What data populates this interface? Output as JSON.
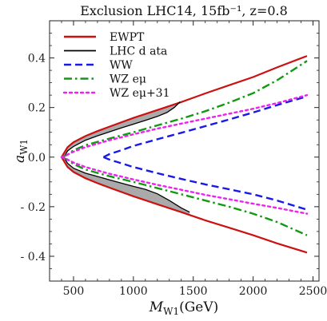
{
  "chart_data": {
    "type": "line",
    "title": "Exclusion LHC14, 15fb⁻¹, z=0.8",
    "xlabel": "M_W1 (GeV)",
    "xlabel_main": "M",
    "xlabel_sub": "W1",
    "xlabel_unit": "(GeV)",
    "ylabel": "a_W1",
    "ylabel_main": "a",
    "ylabel_sub": "W1",
    "xlim": [
      300,
      2550
    ],
    "ylim": [
      -0.5,
      0.55
    ],
    "xticks": [
      500,
      1000,
      1500,
      2000,
      2500
    ],
    "yticks": [
      0.4,
      0.2,
      0.0,
      -0.2,
      -0.4
    ],
    "xtick_labels": [
      "500",
      "1000",
      "1500",
      "2000",
      "2500"
    ],
    "ytick_labels": [
      "0.4",
      "0.2",
      "0.0",
      "- 0.2",
      "- 0.4"
    ],
    "grid": false,
    "legend_position": "top-left",
    "series": [
      {
        "name": "EWPT",
        "color": "#cc1111",
        "dash": "solid",
        "upper": [
          [
            400,
            0.0
          ],
          [
            450,
            0.04
          ],
          [
            500,
            0.06
          ],
          [
            600,
            0.085
          ],
          [
            700,
            0.105
          ],
          [
            800,
            0.123
          ],
          [
            1000,
            0.158
          ],
          [
            1200,
            0.19
          ],
          [
            1400,
            0.222
          ],
          [
            1600,
            0.257
          ],
          [
            1800,
            0.29
          ],
          [
            2000,
            0.323
          ],
          [
            2200,
            0.362
          ],
          [
            2450,
            0.408
          ]
        ],
        "lower": [
          [
            400,
            0.0
          ],
          [
            450,
            -0.04
          ],
          [
            500,
            -0.06
          ],
          [
            600,
            -0.085
          ],
          [
            700,
            -0.105
          ],
          [
            800,
            -0.123
          ],
          [
            1000,
            -0.158
          ],
          [
            1200,
            -0.19
          ],
          [
            1400,
            -0.222
          ],
          [
            1600,
            -0.255
          ],
          [
            1800,
            -0.285
          ],
          [
            2000,
            -0.315
          ],
          [
            2200,
            -0.348
          ],
          [
            2450,
            -0.385
          ]
        ]
      },
      {
        "name": "LHC data",
        "color": "#000000",
        "dash": "solid",
        "upper": [
          [
            420,
            0.0
          ],
          [
            450,
            0.025
          ],
          [
            500,
            0.043
          ],
          [
            600,
            0.068
          ],
          [
            700,
            0.086
          ],
          [
            800,
            0.102
          ],
          [
            900,
            0.118
          ],
          [
            1000,
            0.133
          ],
          [
            1100,
            0.148
          ],
          [
            1200,
            0.164
          ],
          [
            1280,
            0.18
          ],
          [
            1340,
            0.2
          ],
          [
            1390,
            0.223
          ]
        ],
        "lower": [
          [
            420,
            0.0
          ],
          [
            450,
            -0.025
          ],
          [
            500,
            -0.045
          ],
          [
            600,
            -0.065
          ],
          [
            700,
            -0.078
          ],
          [
            800,
            -0.092
          ],
          [
            900,
            -0.105
          ],
          [
            1000,
            -0.118
          ],
          [
            1100,
            -0.13
          ],
          [
            1200,
            -0.148
          ],
          [
            1300,
            -0.175
          ],
          [
            1400,
            -0.205
          ],
          [
            1470,
            -0.222
          ]
        ]
      },
      {
        "name": "WW",
        "color": "#1a1ae6",
        "dash": "dashed",
        "upper": [
          [
            750,
            0.0
          ],
          [
            800,
            0.012
          ],
          [
            900,
            0.028
          ],
          [
            1000,
            0.045
          ],
          [
            1200,
            0.072
          ],
          [
            1400,
            0.098
          ],
          [
            1600,
            0.125
          ],
          [
            1800,
            0.152
          ],
          [
            2000,
            0.18
          ],
          [
            2200,
            0.21
          ],
          [
            2450,
            0.245
          ]
        ],
        "lower": [
          [
            750,
            0.0
          ],
          [
            800,
            -0.01
          ],
          [
            900,
            -0.025
          ],
          [
            1000,
            -0.04
          ],
          [
            1200,
            -0.065
          ],
          [
            1400,
            -0.088
          ],
          [
            1600,
            -0.11
          ],
          [
            1800,
            -0.13
          ],
          [
            2000,
            -0.15
          ],
          [
            2200,
            -0.175
          ],
          [
            2450,
            -0.212
          ]
        ]
      },
      {
        "name": "WZ eμ",
        "color": "#119911",
        "dash": "dashdot",
        "upper": [
          [
            400,
            0.0
          ],
          [
            450,
            0.01
          ],
          [
            500,
            0.028
          ],
          [
            600,
            0.048
          ],
          [
            800,
            0.075
          ],
          [
            1000,
            0.1
          ],
          [
            1200,
            0.128
          ],
          [
            1400,
            0.155
          ],
          [
            1600,
            0.185
          ],
          [
            1800,
            0.22
          ],
          [
            2000,
            0.258
          ],
          [
            2200,
            0.31
          ],
          [
            2450,
            0.388
          ]
        ],
        "lower": [
          [
            400,
            0.0
          ],
          [
            450,
            -0.01
          ],
          [
            500,
            -0.028
          ],
          [
            600,
            -0.05
          ],
          [
            800,
            -0.077
          ],
          [
            1000,
            -0.1
          ],
          [
            1200,
            -0.125
          ],
          [
            1400,
            -0.15
          ],
          [
            1600,
            -0.175
          ],
          [
            1800,
            -0.2
          ],
          [
            2000,
            -0.228
          ],
          [
            2200,
            -0.262
          ],
          [
            2450,
            -0.315
          ]
        ]
      },
      {
        "name": "WZ eμ+31",
        "color": "#ee22ee",
        "dash": "dotted",
        "upper": [
          [
            400,
            0.0
          ],
          [
            450,
            0.01
          ],
          [
            500,
            0.022
          ],
          [
            600,
            0.04
          ],
          [
            800,
            0.068
          ],
          [
            1000,
            0.092
          ],
          [
            1200,
            0.115
          ],
          [
            1400,
            0.135
          ],
          [
            1600,
            0.155
          ],
          [
            1800,
            0.175
          ],
          [
            2000,
            0.195
          ],
          [
            2200,
            0.218
          ],
          [
            2450,
            0.25
          ]
        ],
        "lower": [
          [
            400,
            0.0
          ],
          [
            450,
            -0.01
          ],
          [
            500,
            -0.022
          ],
          [
            600,
            -0.04
          ],
          [
            800,
            -0.067
          ],
          [
            1000,
            -0.09
          ],
          [
            1200,
            -0.112
          ],
          [
            1400,
            -0.132
          ],
          [
            1600,
            -0.152
          ],
          [
            1800,
            -0.17
          ],
          [
            2000,
            -0.188
          ],
          [
            2200,
            -0.205
          ],
          [
            2450,
            -0.228
          ]
        ]
      }
    ],
    "legend": [
      {
        "label": "EWPT",
        "color": "#cc1111",
        "dash": "solid"
      },
      {
        "label": "LHC d ata",
        "color": "#000000",
        "dash": "solid"
      },
      {
        "label": "WW",
        "color": "#1a1ae6",
        "dash": "dashed"
      },
      {
        "label": "WZ eμ",
        "color": "#119911",
        "dash": "dashdot"
      },
      {
        "label": "WZ eμ+31",
        "color": "#ee22ee",
        "dash": "dotted"
      }
    ],
    "shaded_region": {
      "between": "EWPT and LHC data",
      "color": "#aaaaaa"
    }
  }
}
